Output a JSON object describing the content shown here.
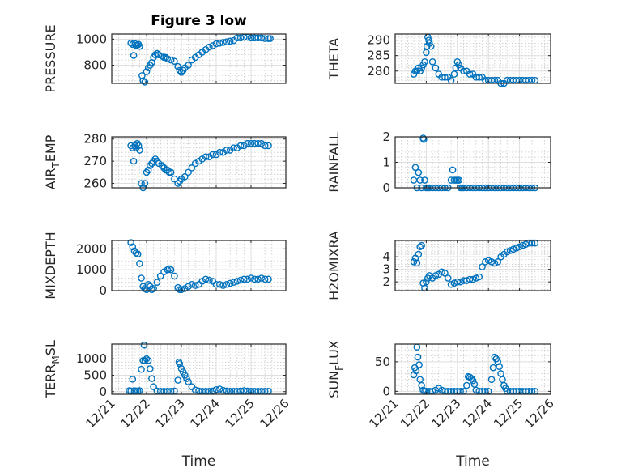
{
  "figure": {
    "title": "Figure 3 low",
    "xlabel": "Time"
  },
  "colors": {
    "marker": "#0072BD",
    "axis": "#262626",
    "background": "#ffffff"
  },
  "x_tick_labels": [
    "12/21",
    "12/22",
    "12/23",
    "12/24",
    "12/25",
    "12/26"
  ],
  "chart_data": [
    {
      "type": "scatter",
      "ylabel": "PRESSURE",
      "xlim": [
        21,
        26
      ],
      "ylim": [
        660,
        1040
      ],
      "yticks": [
        800,
        1000
      ],
      "grid": "on",
      "title": "Figure 3 low",
      "x": [
        21.55,
        21.6,
        21.63,
        21.67,
        21.7,
        21.73,
        21.77,
        21.8,
        21.87,
        21.9,
        21.95,
        22.0,
        22.05,
        22.1,
        22.15,
        22.2,
        22.25,
        22.3,
        22.35,
        22.45,
        22.5,
        22.55,
        22.6,
        22.7,
        22.8,
        22.9,
        22.95,
        23.0,
        23.05,
        23.1,
        23.2,
        23.3,
        23.4,
        23.5,
        23.6,
        23.7,
        23.8,
        23.9,
        24.0,
        24.1,
        24.2,
        24.3,
        24.4,
        24.5,
        24.6,
        24.7,
        24.8,
        24.9,
        25.0,
        25.1,
        25.2,
        25.3,
        25.4,
        25.5,
        25.55
      ],
      "y": [
        970,
        960,
        875,
        965,
        950,
        955,
        960,
        945,
        720,
        680,
        670,
        750,
        780,
        800,
        820,
        860,
        880,
        890,
        880,
        870,
        860,
        860,
        850,
        840,
        830,
        790,
        760,
        745,
        760,
        780,
        800,
        840,
        860,
        880,
        900,
        920,
        940,
        950,
        965,
        970,
        975,
        980,
        985,
        990,
        1010,
        1010,
        1015,
        1015,
        1010,
        1010,
        1010,
        1010,
        1005,
        1005,
        1005
      ]
    },
    {
      "type": "scatter",
      "ylabel": "THETA",
      "xlim": [
        21,
        26
      ],
      "ylim": [
        276,
        292
      ],
      "yticks": [
        280,
        285,
        290
      ],
      "grid": "on",
      "x": [
        21.6,
        21.65,
        21.7,
        21.75,
        21.8,
        21.85,
        21.9,
        21.95,
        22.0,
        22.02,
        22.05,
        22.08,
        22.1,
        22.15,
        22.2,
        22.3,
        22.4,
        22.5,
        22.6,
        22.7,
        22.8,
        22.9,
        22.95,
        23.0,
        23.05,
        23.1,
        23.2,
        23.3,
        23.4,
        23.5,
        23.6,
        23.7,
        23.8,
        23.9,
        24.0,
        24.1,
        24.2,
        24.3,
        24.4,
        24.5,
        24.6,
        24.7,
        24.8,
        24.9,
        25.0,
        25.1,
        25.2,
        25.3,
        25.4,
        25.5
      ],
      "y": [
        279,
        280,
        280,
        281,
        280,
        281,
        282,
        283,
        286,
        288,
        291,
        290,
        289,
        288,
        283,
        281,
        279,
        278,
        278,
        278,
        277,
        279,
        281,
        283,
        282,
        281,
        280,
        280,
        279,
        279,
        278,
        278,
        278,
        277,
        277,
        277,
        277,
        277,
        276,
        276,
        277,
        277,
        277,
        277,
        277,
        277,
        277,
        277,
        277,
        277
      ]
    },
    {
      "type": "scatter",
      "ylabel": "AIR_TEMP",
      "xlim": [
        21,
        26
      ],
      "ylim": [
        258,
        281
      ],
      "yticks": [
        260,
        270,
        280
      ],
      "grid": "on",
      "x": [
        21.55,
        21.6,
        21.63,
        21.67,
        21.7,
        21.73,
        21.77,
        21.8,
        21.85,
        21.9,
        21.95,
        22.0,
        22.05,
        22.1,
        22.15,
        22.2,
        22.25,
        22.3,
        22.35,
        22.45,
        22.5,
        22.55,
        22.6,
        22.65,
        22.7,
        22.8,
        22.9,
        22.95,
        23.0,
        23.1,
        23.2,
        23.3,
        23.4,
        23.5,
        23.6,
        23.7,
        23.8,
        23.9,
        24.0,
        24.1,
        24.2,
        24.3,
        24.4,
        24.5,
        24.6,
        24.7,
        24.8,
        24.9,
        25.0,
        25.1,
        25.2,
        25.3,
        25.4,
        25.5
      ],
      "y": [
        277,
        276,
        270,
        277,
        276,
        278,
        277,
        275,
        260,
        258,
        260,
        265,
        266,
        268,
        269,
        270,
        271,
        270,
        269,
        268,
        267,
        266,
        266,
        265,
        265,
        262,
        260,
        261,
        262,
        263,
        265,
        267,
        269,
        270,
        271,
        272,
        272,
        273,
        273,
        274,
        274,
        275,
        275,
        276,
        276,
        277,
        277,
        278,
        278,
        278,
        278,
        278,
        277,
        277
      ]
    },
    {
      "type": "scatter",
      "ylabel": "RAINFALL",
      "xlim": [
        21,
        26
      ],
      "ylim": [
        0,
        2
      ],
      "yticks": [
        0,
        1,
        2
      ],
      "grid": "on",
      "x": [
        21.6,
        21.65,
        21.7,
        21.75,
        21.8,
        21.85,
        21.9,
        21.92,
        21.95,
        22.0,
        22.05,
        22.1,
        22.2,
        22.3,
        22.4,
        22.5,
        22.6,
        22.7,
        22.8,
        22.85,
        22.9,
        22.95,
        23.0,
        23.05,
        23.1,
        23.15,
        23.2,
        23.3,
        23.4,
        23.5,
        23.6,
        23.7,
        23.8,
        23.9,
        24.0,
        24.1,
        24.2,
        24.3,
        24.4,
        24.5,
        24.6,
        24.7,
        24.8,
        24.9,
        25.0,
        25.1,
        25.2,
        25.3,
        25.4,
        25.5
      ],
      "y": [
        0.3,
        0.8,
        0.0,
        0.6,
        0.3,
        0.0,
        1.95,
        1.9,
        0.3,
        0.0,
        0.0,
        0.0,
        0.0,
        0.0,
        0.0,
        0.0,
        0.0,
        0.0,
        0.3,
        0.7,
        0.3,
        0.3,
        0.3,
        0.3,
        0.0,
        0.0,
        0.0,
        0.0,
        0.0,
        0.0,
        0.0,
        0.0,
        0.0,
        0.0,
        0.0,
        0.0,
        0.0,
        0.0,
        0.0,
        0.0,
        0.0,
        0.0,
        0.0,
        0.0,
        0.0,
        0.0,
        0.0,
        0.0,
        0.0,
        0.0
      ]
    },
    {
      "type": "scatter",
      "ylabel": "MIXDEPTH",
      "xlim": [
        21,
        26
      ],
      "ylim": [
        0,
        2400
      ],
      "yticks": [
        0,
        1000,
        2000
      ],
      "grid": "on",
      "x": [
        21.55,
        21.6,
        21.65,
        21.7,
        21.75,
        21.8,
        21.85,
        21.9,
        21.95,
        22.0,
        22.05,
        22.1,
        22.15,
        22.2,
        22.3,
        22.4,
        22.5,
        22.6,
        22.65,
        22.7,
        22.8,
        22.9,
        22.95,
        23.0,
        23.1,
        23.2,
        23.3,
        23.4,
        23.5,
        23.6,
        23.7,
        23.8,
        23.9,
        24.0,
        24.1,
        24.2,
        24.3,
        24.4,
        24.5,
        24.6,
        24.7,
        24.8,
        24.9,
        25.0,
        25.1,
        25.2,
        25.3,
        25.4,
        25.5
      ],
      "y": [
        2300,
        2100,
        1900,
        1800,
        1750,
        1300,
        600,
        200,
        100,
        50,
        300,
        200,
        50,
        100,
        400,
        700,
        900,
        1000,
        1050,
        1000,
        700,
        150,
        50,
        50,
        100,
        200,
        300,
        250,
        300,
        450,
        550,
        500,
        450,
        300,
        300,
        250,
        300,
        350,
        400,
        450,
        500,
        550,
        550,
        600,
        550,
        550,
        600,
        550,
        550
      ]
    },
    {
      "type": "scatter",
      "ylabel": "H2OMIXRA",
      "xlim": [
        21,
        26
      ],
      "ylim": [
        1.3,
        5.3
      ],
      "yticks": [
        2,
        3,
        4
      ],
      "grid": "on",
      "x": [
        21.6,
        21.65,
        21.7,
        21.75,
        21.8,
        21.85,
        21.9,
        21.95,
        22.0,
        22.05,
        22.1,
        22.2,
        22.3,
        22.4,
        22.5,
        22.6,
        22.7,
        22.8,
        22.9,
        23.0,
        23.1,
        23.2,
        23.3,
        23.4,
        23.5,
        23.6,
        23.7,
        23.8,
        23.9,
        24.0,
        24.1,
        24.2,
        24.3,
        24.4,
        24.5,
        24.6,
        24.7,
        24.8,
        24.9,
        25.0,
        25.1,
        25.2,
        25.3,
        25.4,
        25.5
      ],
      "y": [
        3.6,
        3.9,
        3.5,
        4.2,
        4.8,
        4.9,
        1.9,
        1.5,
        2.0,
        2.3,
        2.5,
        2.3,
        2.5,
        2.6,
        2.8,
        2.7,
        2.3,
        1.8,
        1.9,
        2.0,
        2.0,
        2.1,
        2.1,
        2.2,
        2.2,
        2.3,
        2.4,
        3.2,
        3.6,
        3.7,
        3.6,
        3.5,
        3.6,
        4.0,
        4.2,
        4.4,
        4.5,
        4.6,
        4.7,
        4.8,
        4.9,
        5.0,
        5.1,
        5.1,
        5.1
      ]
    },
    {
      "type": "scatter",
      "ylabel": "TERR_MSL",
      "xlim": [
        21,
        26
      ],
      "ylim": [
        -80,
        1450
      ],
      "yticks": [
        0,
        500,
        1000
      ],
      "grid": "on",
      "x": [
        21.5,
        21.55,
        21.6,
        21.65,
        21.7,
        21.75,
        21.8,
        21.85,
        21.9,
        21.93,
        21.95,
        22.0,
        22.05,
        22.1,
        22.15,
        22.2,
        22.3,
        22.4,
        22.5,
        22.6,
        22.7,
        22.8,
        22.9,
        22.93,
        22.95,
        23.0,
        23.05,
        23.1,
        23.15,
        23.2,
        23.3,
        23.4,
        23.5,
        23.6,
        23.7,
        23.8,
        23.9,
        24.0,
        24.1,
        24.2,
        24.3,
        24.4,
        24.5,
        24.6,
        24.7,
        24.8,
        24.9,
        25.0,
        25.1,
        25.2,
        25.3,
        25.4,
        25.5
      ],
      "y": [
        30,
        20,
        380,
        30,
        20,
        20,
        30,
        680,
        950,
        1420,
        950,
        1000,
        950,
        700,
        400,
        150,
        20,
        10,
        10,
        10,
        10,
        20,
        350,
        900,
        850,
        700,
        600,
        500,
        400,
        300,
        150,
        50,
        20,
        10,
        10,
        10,
        20,
        60,
        80,
        40,
        20,
        10,
        10,
        10,
        20,
        30,
        20,
        10,
        10,
        10,
        10,
        10,
        10
      ]
    },
    {
      "type": "scatter",
      "ylabel": "SUN_FLUX",
      "xlim": [
        21,
        26
      ],
      "ylim": [
        -5,
        80
      ],
      "yticks": [
        0,
        50
      ],
      "grid": "on",
      "x": [
        21.6,
        21.63,
        21.67,
        21.7,
        21.73,
        21.77,
        21.8,
        21.85,
        21.9,
        21.95,
        22.0,
        22.1,
        22.2,
        22.3,
        22.4,
        22.5,
        22.6,
        22.7,
        22.8,
        22.9,
        23.0,
        23.1,
        23.2,
        23.3,
        23.35,
        23.4,
        23.45,
        23.5,
        23.55,
        23.6,
        23.7,
        23.8,
        23.9,
        24.0,
        24.1,
        24.15,
        24.2,
        24.25,
        24.3,
        24.35,
        24.4,
        24.45,
        24.5,
        24.55,
        24.6,
        24.7,
        24.8,
        24.9,
        25.0,
        25.1,
        25.2,
        25.3,
        25.4,
        25.5
      ],
      "y": [
        28,
        40,
        35,
        75,
        58,
        45,
        20,
        10,
        2,
        0,
        0,
        0,
        0,
        2,
        5,
        2,
        0,
        0,
        0,
        0,
        0,
        0,
        0,
        10,
        25,
        24,
        22,
        18,
        12,
        2,
        0,
        0,
        0,
        0,
        20,
        40,
        58,
        55,
        50,
        42,
        30,
        20,
        10,
        5,
        0,
        0,
        0,
        0,
        0,
        0,
        0,
        0,
        0,
        0
      ]
    }
  ]
}
